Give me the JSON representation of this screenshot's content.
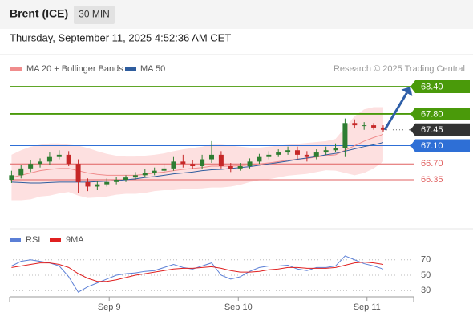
{
  "header": {
    "title": "Brent (ICE)",
    "timeframe": "30 MIN",
    "timestamp": "Thursday, September 11, 2025 4:52:36 AM CET"
  },
  "chart_data": [
    {
      "type": "candlestick",
      "legend": [
        "MA 20 + Bollinger Bands",
        "MA 50"
      ],
      "legend_colors": [
        "#f08c8c",
        "#2f5d9e"
      ],
      "credit": "Research © 2025 Trading Central",
      "ylim": [
        65.36,
        68.63
      ],
      "levels": [
        {
          "value": 68.4,
          "label": "68.40"
        },
        {
          "value": 67.8,
          "label": "67.80"
        },
        {
          "value": 67.45,
          "label": "67.45"
        },
        {
          "value": 67.1,
          "label": "67.10"
        },
        {
          "value": 66.7,
          "label": "66.70"
        },
        {
          "value": 66.35,
          "label": "66.35"
        }
      ],
      "level_colors": [
        "#4a9a0a",
        "#4a9a0a",
        "#333333",
        "#2e6fd6",
        "#e06060",
        "#e06060"
      ],
      "xlim": [
        -0.2,
        42.2
      ],
      "xticks": [
        {
          "value": 10.25,
          "label": "Sep 9"
        },
        {
          "value": 23.8,
          "label": "Sep 10"
        },
        {
          "value": 37.3,
          "label": "Sep 11"
        }
      ],
      "up_color": "#2e7d32",
      "down_color": "#c62828",
      "open": [
        66.35,
        66.45,
        66.6,
        66.7,
        66.75,
        66.85,
        66.9,
        66.7,
        66.3,
        66.2,
        66.25,
        66.3,
        66.35,
        66.4,
        66.45,
        66.5,
        66.55,
        66.6,
        66.75,
        66.7,
        66.65,
        66.8,
        66.9,
        66.65,
        66.6,
        66.65,
        66.75,
        66.85,
        66.9,
        66.95,
        67.0,
        66.9,
        66.85,
        66.95,
        67.0,
        67.05,
        67.6,
        67.55,
        67.55,
        67.5
      ],
      "high": [
        66.55,
        66.68,
        66.78,
        66.82,
        66.95,
        67.0,
        66.98,
        66.8,
        66.38,
        66.32,
        66.38,
        66.42,
        66.45,
        66.52,
        66.58,
        66.62,
        66.7,
        66.85,
        66.9,
        66.78,
        66.9,
        67.2,
        66.98,
        66.72,
        66.72,
        66.82,
        66.92,
        66.98,
        67.02,
        67.08,
        67.08,
        66.98,
        67.02,
        67.08,
        67.15,
        67.7,
        67.68,
        67.62,
        67.6,
        67.55
      ],
      "low": [
        66.28,
        66.38,
        66.52,
        66.62,
        66.68,
        66.8,
        66.65,
        66.05,
        66.1,
        66.12,
        66.2,
        66.25,
        66.3,
        66.35,
        66.4,
        66.45,
        66.5,
        66.55,
        66.62,
        66.6,
        66.58,
        66.72,
        66.6,
        66.52,
        66.55,
        66.6,
        66.7,
        66.8,
        66.85,
        66.9,
        66.8,
        66.75,
        66.8,
        66.9,
        66.95,
        66.85,
        67.48,
        67.45,
        67.45,
        67.4
      ],
      "close": [
        66.45,
        66.6,
        66.7,
        66.75,
        66.85,
        66.9,
        66.7,
        66.3,
        66.2,
        66.25,
        66.3,
        66.35,
        66.4,
        66.45,
        66.5,
        66.55,
        66.6,
        66.75,
        66.7,
        66.65,
        66.8,
        66.9,
        66.65,
        66.6,
        66.65,
        66.75,
        66.85,
        66.9,
        66.95,
        67.0,
        66.9,
        66.85,
        66.95,
        67.0,
        67.05,
        67.6,
        67.55,
        67.55,
        67.5,
        67.45
      ],
      "ma20": [
        66.4,
        66.45,
        66.5,
        66.55,
        66.58,
        66.6,
        66.6,
        66.55,
        66.5,
        66.47,
        66.45,
        66.45,
        66.45,
        66.45,
        66.47,
        66.5,
        66.52,
        66.55,
        66.58,
        66.6,
        66.62,
        66.65,
        66.65,
        66.65,
        66.66,
        66.68,
        66.7,
        66.72,
        66.75,
        66.78,
        66.8,
        66.82,
        66.85,
        66.88,
        66.9,
        67.0,
        67.1,
        67.2,
        67.28,
        67.35
      ],
      "ma50": [
        66.3,
        66.29,
        66.28,
        66.28,
        66.29,
        66.3,
        66.3,
        66.3,
        66.3,
        66.31,
        66.32,
        66.33,
        66.35,
        66.37,
        66.4,
        66.42,
        66.45,
        66.48,
        66.5,
        66.52,
        66.55,
        66.57,
        66.58,
        66.6,
        66.62,
        66.64,
        66.67,
        66.7,
        66.73,
        66.76,
        66.8,
        66.83,
        66.86,
        66.9,
        66.93,
        66.98,
        67.03,
        67.08,
        67.12,
        67.17
      ],
      "bb_upper": [
        66.9,
        67.0,
        67.08,
        67.12,
        67.15,
        67.15,
        67.12,
        67.1,
        67.05,
        66.98,
        66.92,
        66.88,
        66.86,
        66.86,
        66.88,
        66.9,
        66.93,
        66.98,
        67.02,
        67.05,
        67.08,
        67.12,
        67.12,
        67.1,
        67.08,
        67.06,
        67.06,
        67.08,
        67.1,
        67.12,
        67.14,
        67.16,
        67.18,
        67.2,
        67.25,
        67.5,
        67.75,
        67.9,
        67.95,
        67.95
      ],
      "bb_lower": [
        65.9,
        65.9,
        65.92,
        65.98,
        66.0,
        66.05,
        66.08,
        66.0,
        65.95,
        65.96,
        65.98,
        66.02,
        66.04,
        66.04,
        66.06,
        66.1,
        66.12,
        66.12,
        66.14,
        66.15,
        66.16,
        66.18,
        66.18,
        66.2,
        66.24,
        66.3,
        66.34,
        66.36,
        66.4,
        66.44,
        66.46,
        66.48,
        66.52,
        66.56,
        66.55,
        66.5,
        66.45,
        66.5,
        66.6,
        66.75
      ]
    },
    {
      "type": "line",
      "ylim": [
        22,
        105
      ],
      "yticks": [
        70,
        50,
        30
      ],
      "series": [
        {
          "name": "RSI",
          "color": "#5b7fd6",
          "values": [
            62,
            68,
            70,
            68,
            66,
            62,
            48,
            28,
            35,
            40,
            45,
            50,
            52,
            53,
            55,
            56,
            60,
            64,
            60,
            58,
            62,
            66,
            50,
            45,
            48,
            55,
            60,
            62,
            62,
            63,
            58,
            56,
            60,
            60,
            62,
            75,
            70,
            65,
            62,
            58
          ]
        },
        {
          "name": "9MA",
          "color": "#e02020",
          "values": [
            60,
            62,
            64,
            66,
            66,
            64,
            60,
            52,
            46,
            42,
            42,
            44,
            47,
            50,
            52,
            54,
            56,
            58,
            59,
            59,
            60,
            61,
            59,
            56,
            54,
            54,
            55,
            57,
            58,
            60,
            60,
            59,
            59,
            59,
            60,
            63,
            66,
            67,
            66,
            64
          ]
        }
      ]
    }
  ]
}
